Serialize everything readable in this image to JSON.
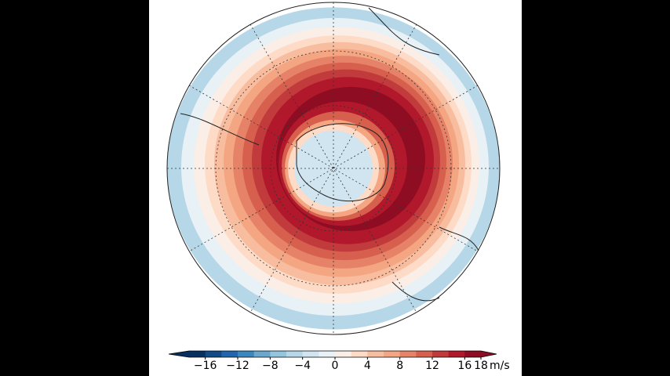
{
  "map": {
    "colorbar": {
      "range": [
        -18,
        18
      ],
      "ticks": [
        {
          "value": -16,
          "label": "−16"
        },
        {
          "value": -12,
          "label": "−12"
        },
        {
          "value": -8,
          "label": "−8"
        },
        {
          "value": -4,
          "label": "−4"
        },
        0,
        4,
        8,
        12,
        16,
        18
      ],
      "unit": "m/s",
      "colors": [
        "#053061",
        "#134b87",
        "#2166ac",
        "#3a87bd",
        "#6aa6cd",
        "#92c5de",
        "#b5d7e8",
        "#d1e5f0",
        "#e8f1f6",
        "#fbeee6",
        "#fddbc7",
        "#f8bc9f",
        "#f4a582",
        "#e58267",
        "#d6604d",
        "#c13b3c",
        "#b2182b",
        "#8e0d22"
      ]
    }
  }
}
